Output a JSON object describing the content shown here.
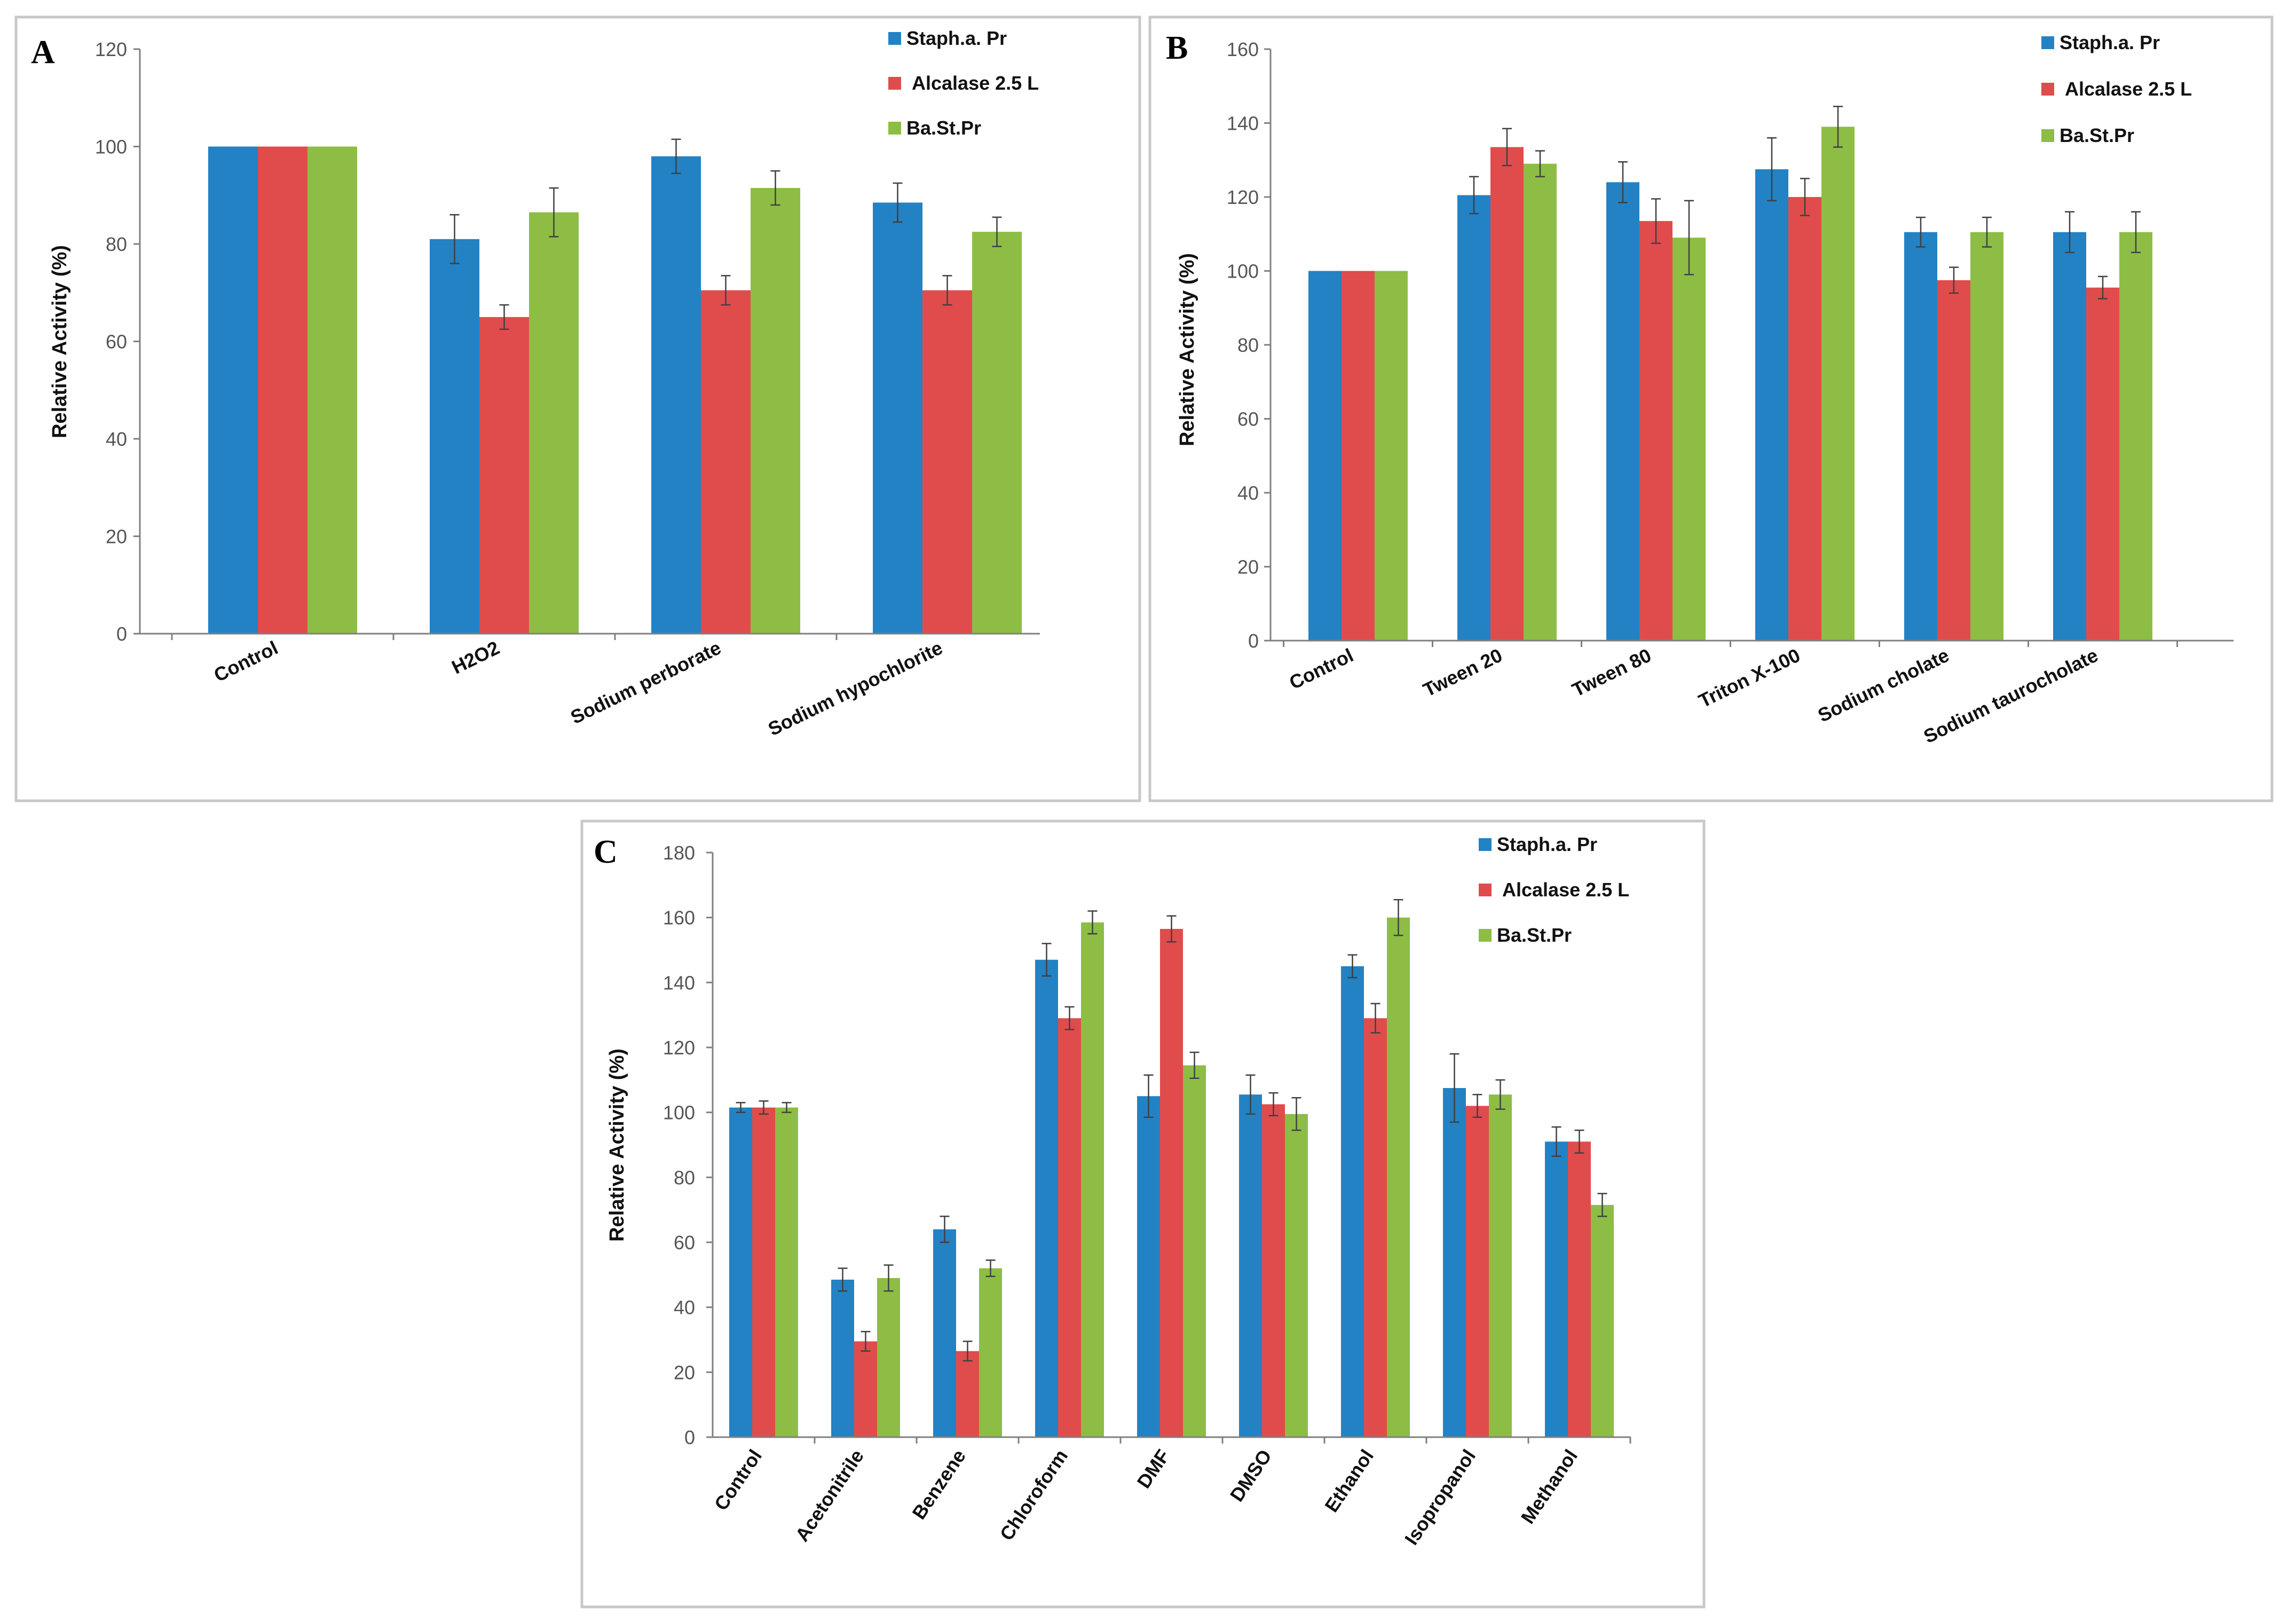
{
  "colors": {
    "staph": "#2382c3",
    "alcalase": "#e04c4c",
    "bast": "#8dbd45"
  },
  "chart_data": [
    {
      "panel": "A",
      "type": "bar",
      "ylabel": "Relative Activity (%)",
      "ylim": [
        0,
        120
      ],
      "yticks": [
        0,
        20,
        40,
        60,
        80,
        100,
        120
      ],
      "categories": [
        "Control",
        "H2O2",
        "Sodium perborate",
        "Sodium hypochlorite"
      ],
      "legend_position": "top-right",
      "series": [
        {
          "name": "Staph.a. Pr",
          "color_key": "staph",
          "values": [
            100,
            81,
            98,
            88.5
          ],
          "errors": [
            0,
            5,
            3.5,
            4
          ]
        },
        {
          "name": "Alcalase 2.5 L",
          "color_key": "alcalase",
          "values": [
            100,
            65,
            70.5,
            70.5
          ],
          "errors": [
            0,
            2.5,
            3,
            3
          ]
        },
        {
          "name": "Ba.St.Pr",
          "color_key": "bast",
          "values": [
            100,
            86.5,
            91.5,
            82.5
          ],
          "errors": [
            0,
            5,
            3.5,
            3
          ]
        }
      ]
    },
    {
      "panel": "B",
      "type": "bar",
      "ylabel": "Relative Activity (%)",
      "ylim": [
        0,
        160
      ],
      "yticks": [
        0,
        20,
        40,
        60,
        80,
        100,
        120,
        140,
        160
      ],
      "categories": [
        "Control",
        "Tween 20",
        "Tween 80",
        "Triton X-100",
        "Sodium cholate",
        "Sodium taurocholate"
      ],
      "legend_position": "top-right",
      "series": [
        {
          "name": "Staph.a. Pr",
          "color_key": "staph",
          "values": [
            100,
            120.5,
            124,
            127.5,
            110.5,
            110.5
          ],
          "errors": [
            0,
            5,
            5.5,
            8.5,
            4,
            5.5
          ]
        },
        {
          "name": "Alcalase 2.5 L",
          "color_key": "alcalase",
          "values": [
            100,
            133.5,
            113.5,
            120,
            97.5,
            95.5
          ],
          "errors": [
            0,
            5,
            6,
            5,
            3.5,
            3
          ]
        },
        {
          "name": "Ba.St.Pr",
          "color_key": "bast",
          "values": [
            100,
            129,
            109,
            139,
            110.5,
            110.5
          ],
          "errors": [
            0,
            3.5,
            10,
            5.5,
            4,
            5.5
          ]
        }
      ]
    },
    {
      "panel": "C",
      "type": "bar",
      "ylabel": "Relative Activity (%)",
      "ylim": [
        0,
        180
      ],
      "yticks": [
        0,
        20,
        40,
        60,
        80,
        100,
        120,
        140,
        160,
        180
      ],
      "categories": [
        "Control",
        "Acetonitrile",
        "Benzene",
        "Chloroform",
        "DMF",
        "DMSO",
        "Ethanol",
        "Isopropanol",
        "Methanol"
      ],
      "legend_position": "top-right",
      "series": [
        {
          "name": "Staph.a. Pr",
          "color_key": "staph",
          "values": [
            101.5,
            48.5,
            64,
            147,
            105,
            105.5,
            145,
            107.5,
            91
          ],
          "errors": [
            1.5,
            3.5,
            4,
            5,
            6.5,
            6,
            3.5,
            10.5,
            4.5
          ]
        },
        {
          "name": "Alcalase 2.5 L",
          "color_key": "alcalase",
          "values": [
            101.5,
            29.5,
            26.5,
            129,
            156.5,
            102.5,
            129,
            102,
            91
          ],
          "errors": [
            2,
            3,
            3,
            3.5,
            4,
            3.5,
            4.5,
            3.5,
            3.5
          ]
        },
        {
          "name": "Ba.St.Pr",
          "color_key": "bast",
          "values": [
            101.5,
            49,
            52,
            158.5,
            114.5,
            99.5,
            160,
            105.5,
            71.5
          ],
          "errors": [
            1.5,
            4,
            2.5,
            3.5,
            4,
            5,
            5.5,
            4.5,
            3.5
          ]
        }
      ]
    }
  ]
}
